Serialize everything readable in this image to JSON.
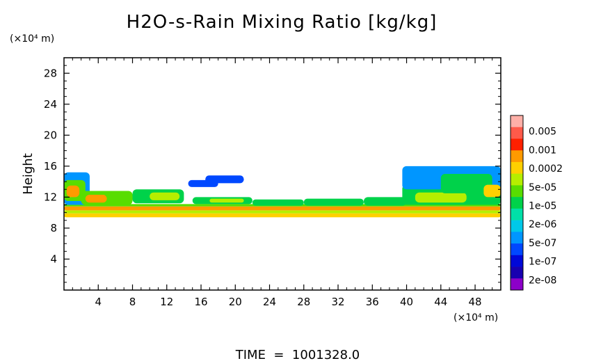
{
  "chart_data": {
    "type": "heatmap",
    "title": "H2O-s-Rain Mixing Ratio [kg/kg]",
    "ylabel": "Height",
    "y_unit": "(×10⁴ m)",
    "x_unit": "(×10⁴ m)",
    "footer": "TIME  =  1001328.0",
    "xlim": [
      0,
      51
    ],
    "ylim": [
      0,
      30
    ],
    "x_ticks": [
      "4",
      "8",
      "12",
      "16",
      "20",
      "24",
      "28",
      "32",
      "36",
      "40",
      "44",
      "48"
    ],
    "y_ticks": [
      "4",
      "8",
      "12",
      "16",
      "20",
      "24",
      "28"
    ],
    "legend_position": "right",
    "colorbar": {
      "labels": [
        "0.005",
        "0.001",
        "0.0002",
        "5e-05",
        "1e-05",
        "2e-06",
        "5e-07",
        "1e-07",
        "2e-08"
      ],
      "colors": [
        "#ffb0a8",
        "#ff5a4a",
        "#ff2000",
        "#ff9a00",
        "#ffd000",
        "#b6ee00",
        "#58dd00",
        "#00d24a",
        "#00e0a8",
        "#00c8e8",
        "#0096ff",
        "#0048ff",
        "#0008d8",
        "#1800b0",
        "#8c00c8"
      ]
    },
    "regions": [
      {
        "x": [
          0,
          51
        ],
        "y": [
          9.4,
          9.9
        ],
        "level": 4
      },
      {
        "x": [
          0,
          51
        ],
        "y": [
          9.9,
          10.3
        ],
        "level": 5
      },
      {
        "x": [
          0,
          51
        ],
        "y": [
          10.3,
          10.8
        ],
        "level": 3
      },
      {
        "x": [
          0,
          51
        ],
        "y": [
          10.8,
          11.1
        ],
        "level": 6
      },
      {
        "x": [
          0,
          3
        ],
        "y": [
          11,
          15.2
        ],
        "level": 10
      },
      {
        "x": [
          0,
          2.5
        ],
        "y": [
          11.5,
          14.2
        ],
        "level": 6
      },
      {
        "x": [
          0.3,
          1.8
        ],
        "y": [
          12,
          13.5
        ],
        "level": 3
      },
      {
        "x": [
          2,
          8
        ],
        "y": [
          11,
          12.8
        ],
        "level": 6
      },
      {
        "x": [
          2.5,
          5
        ],
        "y": [
          11.3,
          12.3
        ],
        "level": 3
      },
      {
        "x": [
          8,
          14
        ],
        "y": [
          11.2,
          13
        ],
        "level": 7
      },
      {
        "x": [
          10,
          13.5
        ],
        "y": [
          11.6,
          12.6
        ],
        "level": 5
      },
      {
        "x": [
          14.5,
          18
        ],
        "y": [
          13.3,
          14.2
        ],
        "level": 11
      },
      {
        "x": [
          16.5,
          21
        ],
        "y": [
          13.8,
          14.8
        ],
        "level": 11
      },
      {
        "x": [
          15,
          22
        ],
        "y": [
          11.1,
          12
        ],
        "level": 7
      },
      {
        "x": [
          17,
          21
        ],
        "y": [
          11.3,
          11.8
        ],
        "level": 5
      },
      {
        "x": [
          22,
          28
        ],
        "y": [
          10.9,
          11.7
        ],
        "level": 7
      },
      {
        "x": [
          28,
          35
        ],
        "y": [
          10.9,
          11.8
        ],
        "level": 7
      },
      {
        "x": [
          35,
          40
        ],
        "y": [
          10.9,
          12
        ],
        "level": 7
      },
      {
        "x": [
          39.5,
          51
        ],
        "y": [
          11,
          13.6
        ],
        "level": 7
      },
      {
        "x": [
          41,
          47
        ],
        "y": [
          11.3,
          12.6
        ],
        "level": 5
      },
      {
        "x": [
          39.5,
          51
        ],
        "y": [
          13,
          16
        ],
        "level": 10
      },
      {
        "x": [
          44,
          50
        ],
        "y": [
          12.5,
          15
        ],
        "level": 7
      },
      {
        "x": [
          49,
          51
        ],
        "y": [
          12,
          13.6
        ],
        "level": 4
      }
    ]
  }
}
